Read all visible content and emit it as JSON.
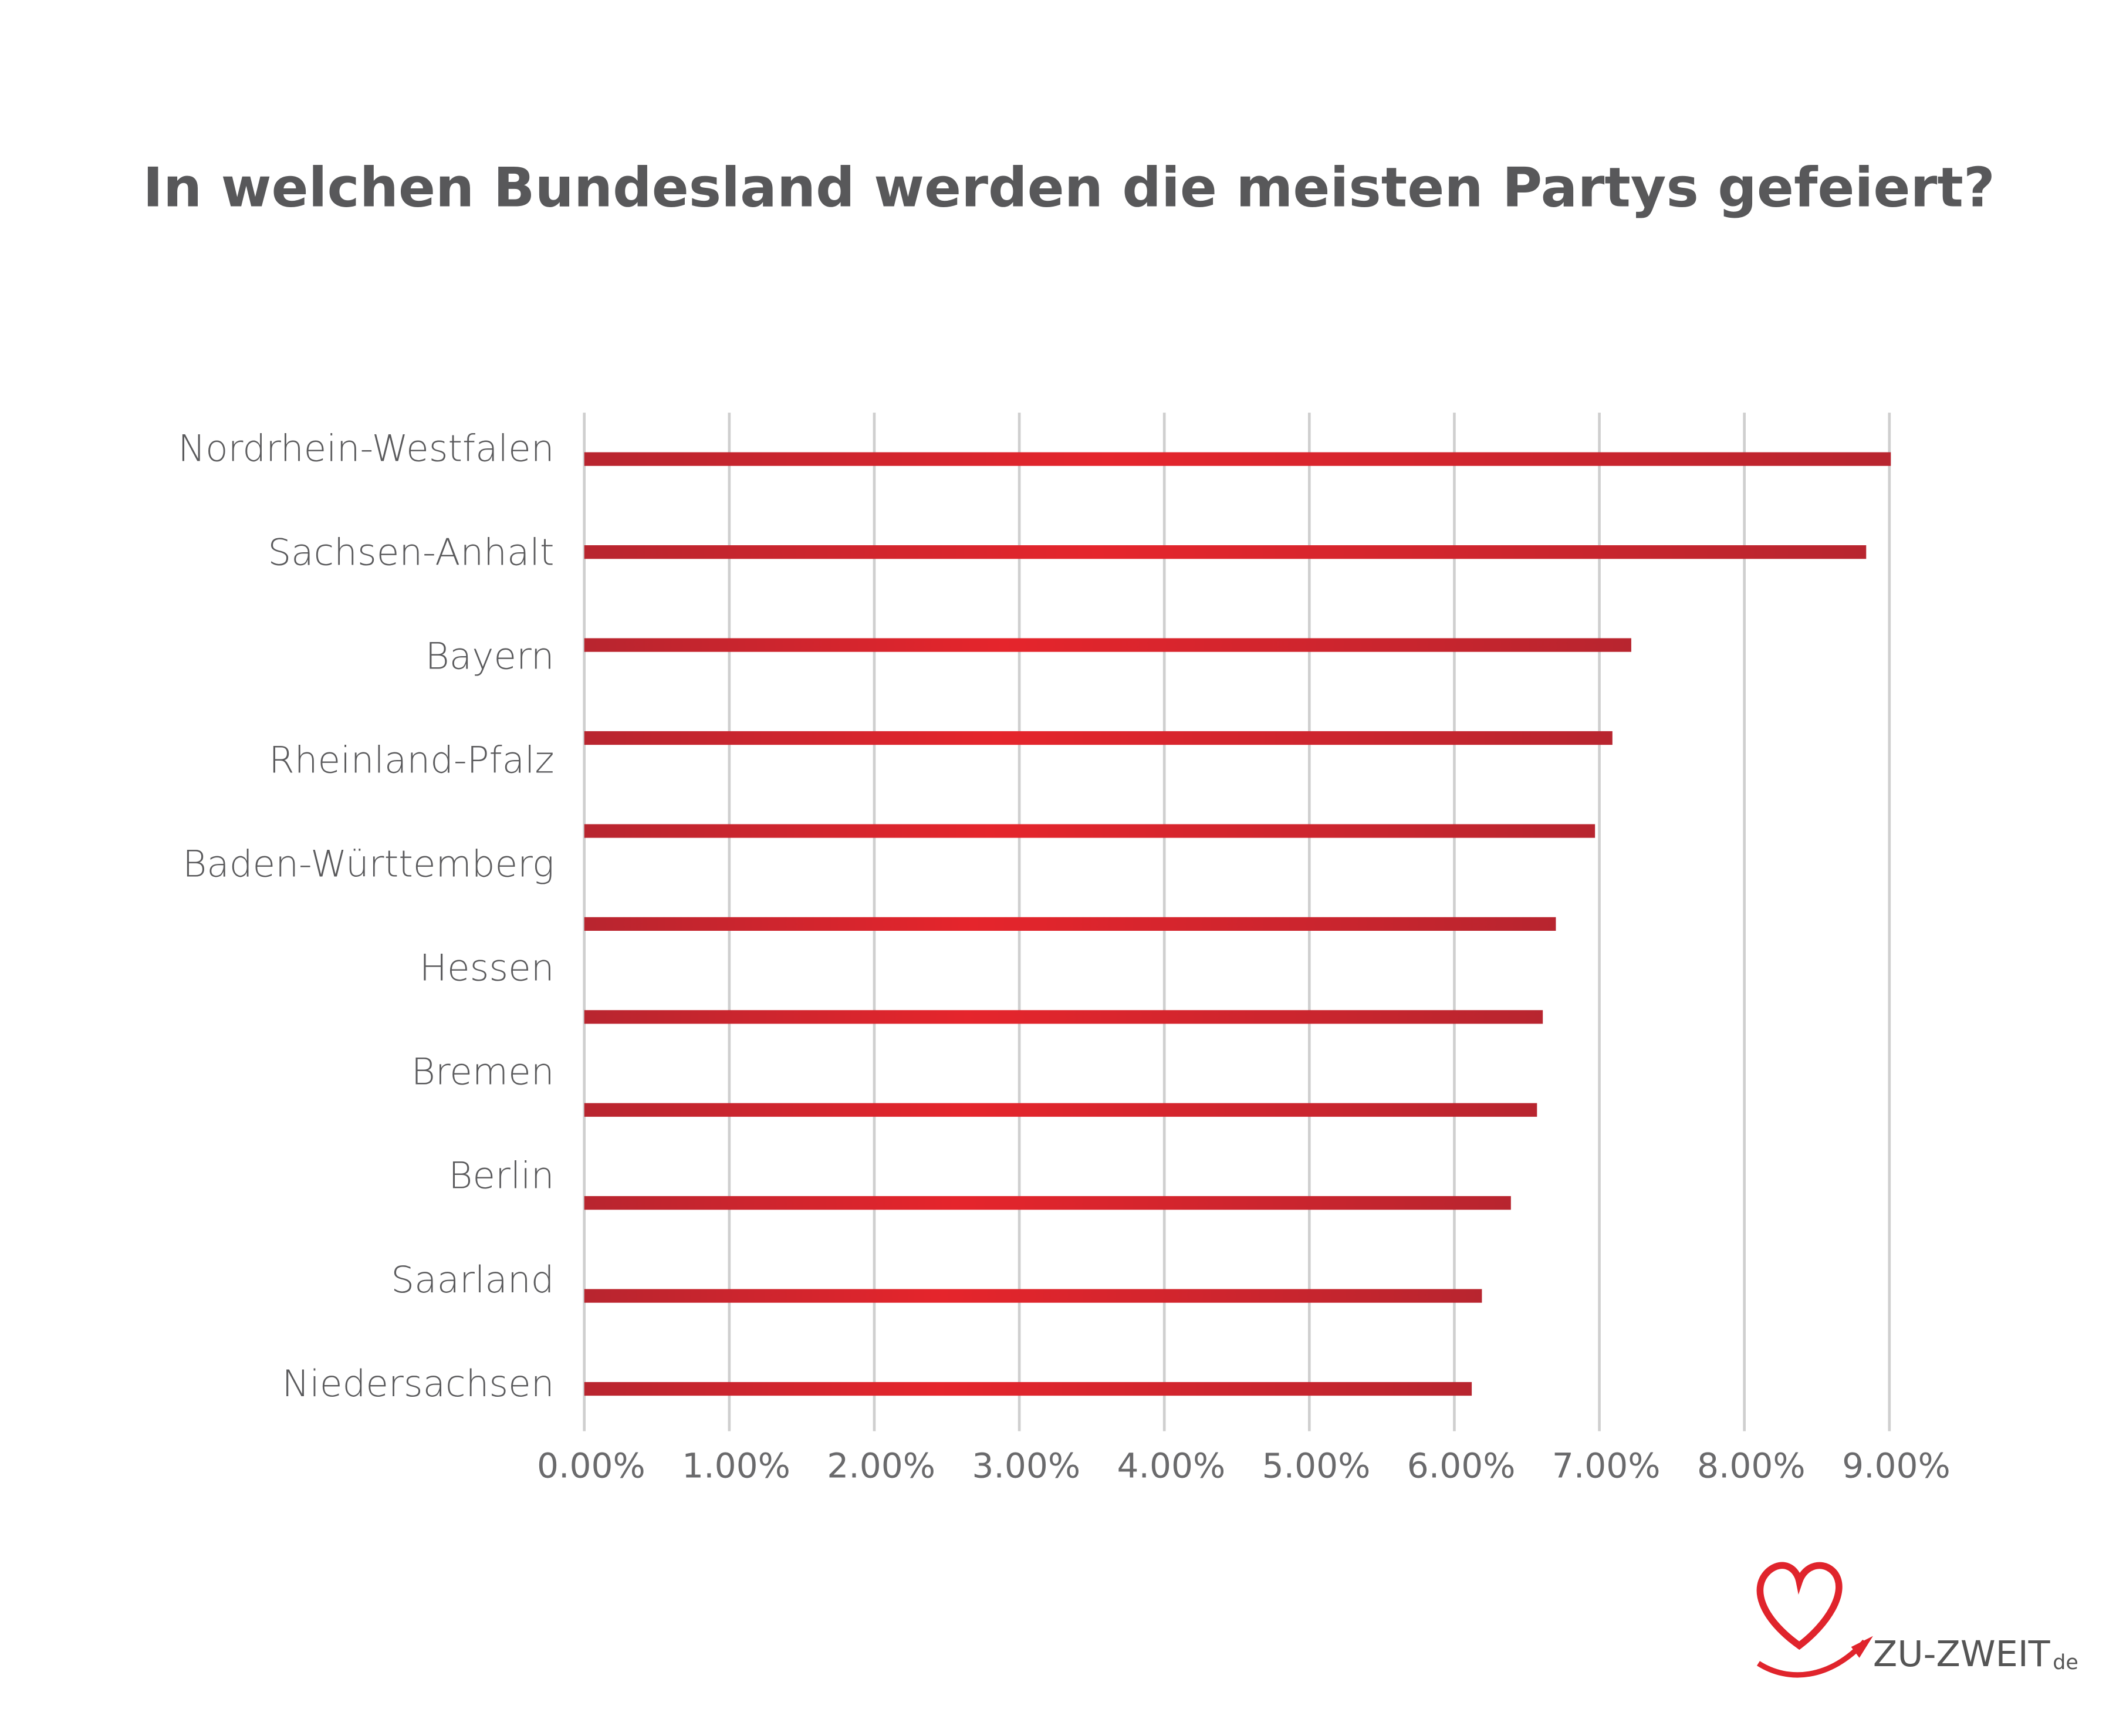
{
  "chart_data": {
    "type": "bar",
    "orientation": "horizontal",
    "title": "In welchen Bundesland werden die meisten Partys gefeiert?",
    "categories": [
      "Nordrhein-Westfalen",
      "Sachsen-Anhalt",
      "Bayern",
      "Rheinland-Pfalz",
      "Baden-Württemberg",
      "Hessen",
      "Bremen",
      "Berlin",
      "Saarland",
      "Niedersachsen",
      null
    ],
    "values": [
      9.01,
      8.84,
      7.22,
      7.09,
      6.97,
      6.7,
      6.61,
      6.57,
      6.39,
      6.19,
      6.12
    ],
    "color": "#d7262e",
    "xlim": [
      0,
      9
    ],
    "xticks": [
      {
        "value": 0,
        "label": "0.00%"
      },
      {
        "value": 1,
        "label": "1.00%"
      },
      {
        "value": 2,
        "label": "2.00%"
      },
      {
        "value": 3,
        "label": "3.00%"
      },
      {
        "value": 4,
        "label": "4.00%"
      },
      {
        "value": 5,
        "label": "5.00%"
      },
      {
        "value": 6,
        "label": "6.00%"
      },
      {
        "value": 7,
        "label": "7.00%"
      },
      {
        "value": 8,
        "label": "8.00%"
      },
      {
        "value": 9,
        "label": "9.00%"
      }
    ],
    "grid": true
  },
  "logo": {
    "name": "ZU-ZWEIT",
    "suffix": "de"
  }
}
